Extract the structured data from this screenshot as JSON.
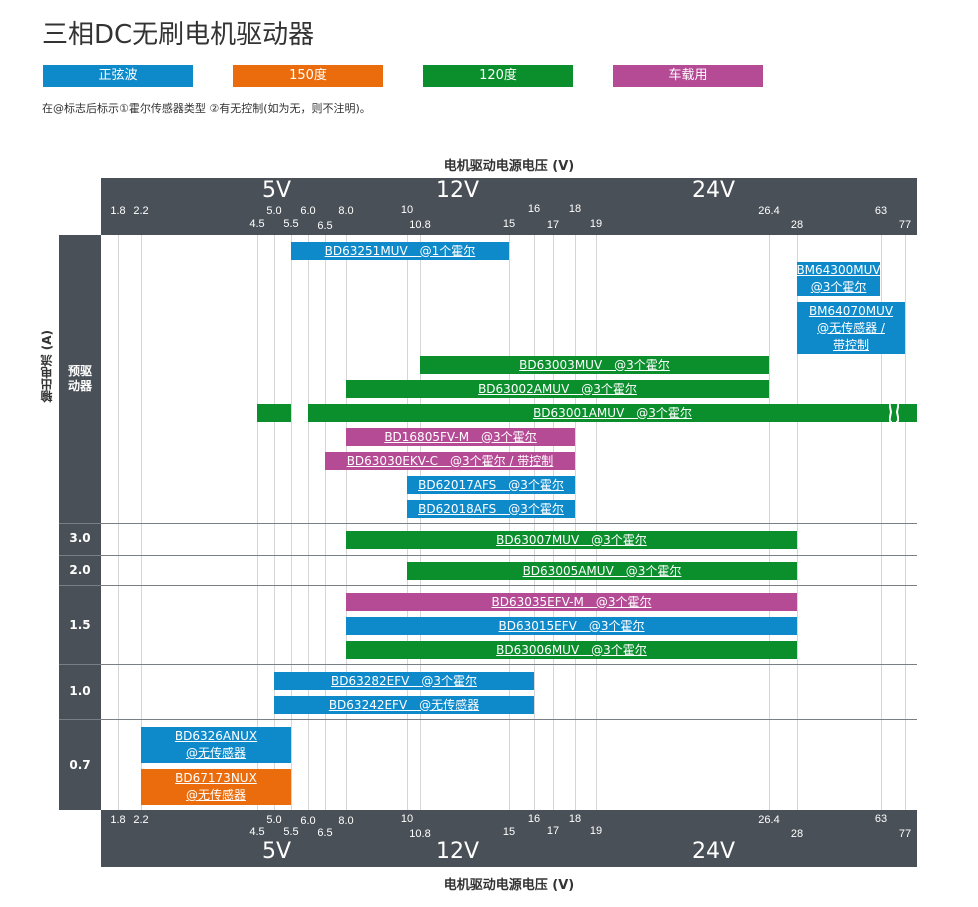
{
  "title": "三相DC无刷电机驱动器",
  "legend": [
    {
      "label": "正弦波",
      "color": "#0e8acb"
    },
    {
      "label": "150度",
      "color": "#ea6c0d"
    },
    {
      "label": "120度",
      "color": "#0b8e2c"
    },
    {
      "label": "车载用",
      "color": "#b54a95"
    }
  ],
  "note": "在@标志后标示①霍尔传感器类型 ②有无控制(如为无，则不注明)。",
  "chart_data": {
    "type": "bar",
    "xlabel": "电机驱动电源电压 (V)",
    "ylabel": "输出电流 (A)",
    "x_ticks": [
      "1.8",
      "2.2",
      "4.5",
      "5.0",
      "5.5",
      "6.0",
      "6.5",
      "8.0",
      "10",
      "10.8",
      "15",
      "16",
      "17",
      "18",
      "19",
      "26.4",
      "28",
      "63",
      "77"
    ],
    "major_labels": [
      "5V",
      "12V",
      "24V"
    ],
    "rows": [
      "预驱动器",
      "3.0",
      "2.0",
      "1.5",
      "1.0",
      "0.7"
    ],
    "series": [
      {
        "row": "预驱动器",
        "label": "BD63251MUV　@1个霍尔",
        "type": "正弦波",
        "x": [
          5.5,
          15
        ]
      },
      {
        "row": "预驱动器",
        "label": "BM64300MUV|@3个霍尔",
        "type": "正弦波",
        "x": [
          28,
          63
        ]
      },
      {
        "row": "预驱动器",
        "label": "BM64070MUV|@无传感器 /|带控制",
        "type": "正弦波",
        "x": [
          28,
          77
        ]
      },
      {
        "row": "预驱动器",
        "label": "BD63003MUV　@3个霍尔",
        "type": "120度",
        "x": [
          10.8,
          26.4
        ]
      },
      {
        "row": "预驱动器",
        "label": "BD63002AMUV　@3个霍尔",
        "type": "120度",
        "x": [
          8,
          26.4
        ]
      },
      {
        "row": "预驱动器",
        "label": "BD63001AMUV　@3个霍尔",
        "type": "120度",
        "x": [
          4.5,
          77
        ],
        "gap": [
          5.5,
          6.0
        ]
      },
      {
        "row": "预驱动器",
        "label": "BD16805FV-M　@3个霍尔",
        "type": "车载用",
        "x": [
          8,
          18
        ]
      },
      {
        "row": "预驱动器",
        "label": "BD63030EKV-C　@3个霍尔 / 带控制",
        "type": "车载用",
        "x": [
          6.5,
          18
        ]
      },
      {
        "row": "预驱动器",
        "label": "BD62017AFS　@3个霍尔",
        "type": "正弦波",
        "x": [
          10,
          18
        ]
      },
      {
        "row": "预驱动器",
        "label": "BD62018AFS　@3个霍尔",
        "type": "正弦波",
        "x": [
          10,
          18
        ]
      },
      {
        "row": "3.0",
        "label": "BD63007MUV　@3个霍尔",
        "type": "120度",
        "x": [
          8,
          28
        ]
      },
      {
        "row": "2.0",
        "label": "BD63005AMUV　@3个霍尔",
        "type": "120度",
        "x": [
          10,
          28
        ]
      },
      {
        "row": "1.5",
        "label": "BD63035EFV-M　@3个霍尔",
        "type": "车载用",
        "x": [
          8,
          28
        ]
      },
      {
        "row": "1.5",
        "label": "BD63015EFV　@3个霍尔",
        "type": "正弦波",
        "x": [
          8,
          28
        ]
      },
      {
        "row": "1.5",
        "label": "BD63006MUV　@3个霍尔",
        "type": "120度",
        "x": [
          8,
          28
        ]
      },
      {
        "row": "1.0",
        "label": "BD63282EFV　@3个霍尔",
        "type": "正弦波",
        "x": [
          5.0,
          16
        ]
      },
      {
        "row": "1.0",
        "label": "BD63242EFV　@无传感器",
        "type": "正弦波",
        "x": [
          5.0,
          16
        ]
      },
      {
        "row": "0.7",
        "label": "BD6326ANUX|@无传感器",
        "type": "正弦波",
        "x": [
          2.2,
          5.5
        ]
      },
      {
        "row": "0.7",
        "label": "BD67173NUX|@无传感器",
        "type": "150度",
        "x": [
          2.2,
          5.5
        ]
      }
    ]
  }
}
